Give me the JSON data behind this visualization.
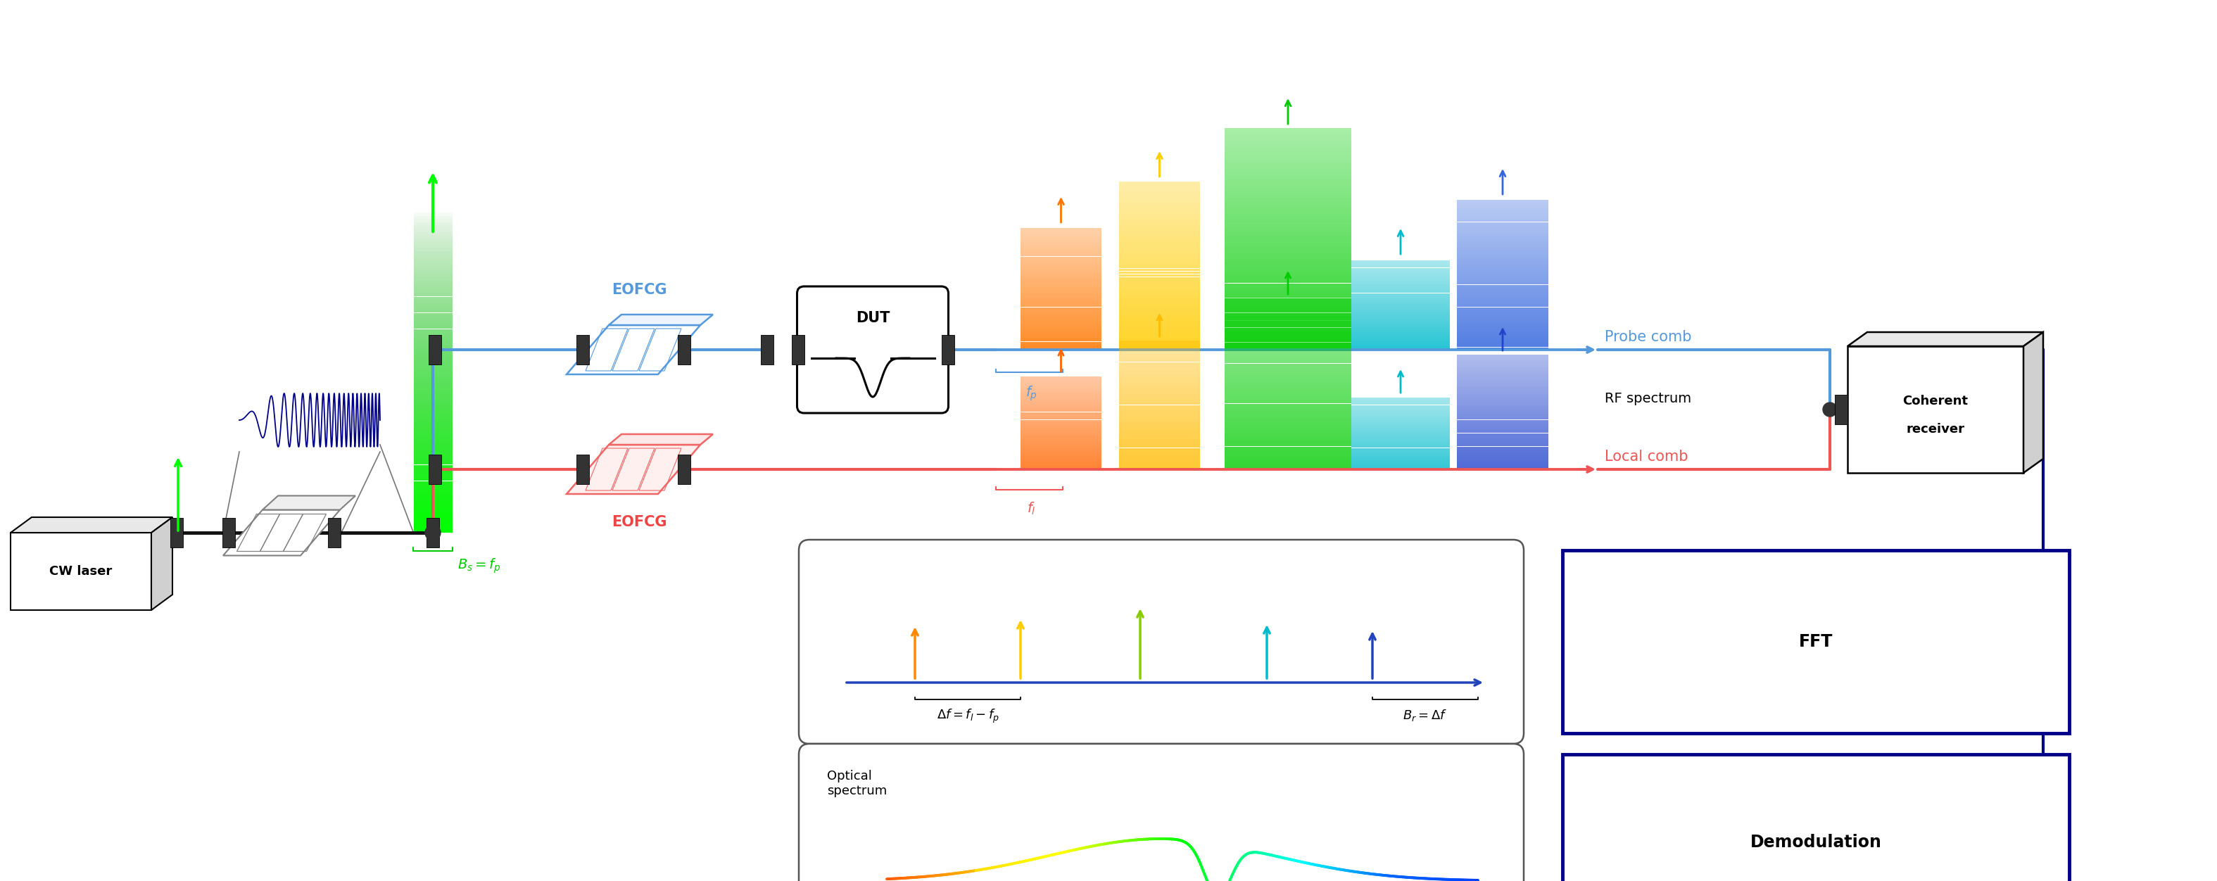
{
  "bg": "#ffffff",
  "blue": "#5599dd",
  "blue2": "#3377cc",
  "red": "#ee5555",
  "red2": "#cc3333",
  "green": "#00dd00",
  "lime": "#00ff00",
  "navy": "#000088",
  "navy2": "#0000aa",
  "orange": "#ff8800",
  "yellow": "#ffdd00",
  "chartreuse": "#88dd00",
  "g2": "#00cc00",
  "cyan": "#00ccdd",
  "teal": "#00aacc",
  "blue3": "#2244bb",
  "blue4": "#1133aa",
  "gray": "#777777",
  "darkgray": "#444444",
  "label_cw": "CW laser",
  "label_eofcg": "EOFCG",
  "label_dut": "DUT",
  "label_probe": "Probe comb",
  "label_local": "Local comb",
  "label_rf": "RF spectrum",
  "label_recv1": "Coherent",
  "label_recv2": "receiver",
  "label_fft": "FFT",
  "label_demod": "Demodulation",
  "label_opt": "Optical\nspectrum"
}
